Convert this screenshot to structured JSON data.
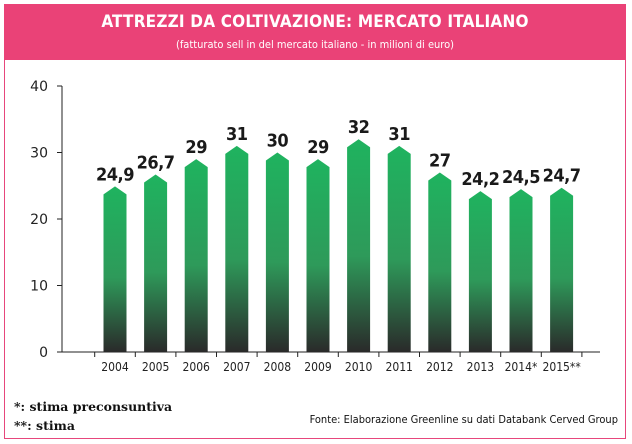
{
  "header": {
    "title": "ATTREZZI DA COLTIVAZIONE: MERCATO ITALIANO",
    "subtitle": "(fatturato sell in del mercato italiano - in milioni di euro)"
  },
  "footnotes": {
    "note1": "*: stima preconsuntiva",
    "note2": "**: stima"
  },
  "source": "Fonte: Elaborazione Greenline su dati Databank Cerved Group",
  "colors": {
    "header_bg": "#ea4277",
    "bar_top": "#1fb35f",
    "bar_bottom": "#2a2a2a"
  },
  "chart_data": {
    "type": "bar",
    "categories": [
      "2004",
      "2005",
      "2006",
      "2007",
      "2008",
      "2009",
      "2010",
      "2011",
      "2012",
      "2013",
      "2014*",
      "2015**"
    ],
    "values": [
      24.9,
      26.7,
      29,
      31,
      30,
      29,
      32,
      31,
      27,
      24.2,
      24.5,
      24.7
    ],
    "value_labels": [
      "24,9",
      "26,7",
      "29",
      "31",
      "30",
      "29",
      "32",
      "31",
      "27",
      "24,2",
      "24,5",
      "24,7"
    ],
    "yticks": [
      "0",
      "10",
      "20",
      "30",
      "40"
    ],
    "ylim": [
      0,
      40
    ],
    "grid": false
  }
}
